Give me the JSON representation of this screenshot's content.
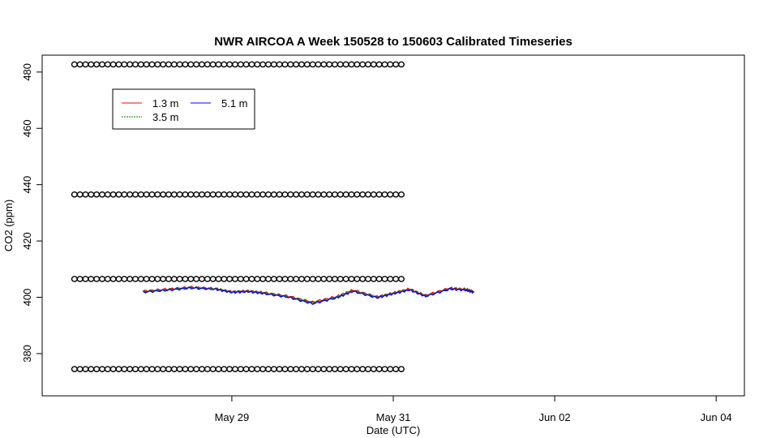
{
  "chart_data": {
    "type": "line",
    "title": "NWR AIRCOA A  Week 150528 to 150603  Calibrated Timeseries",
    "xlabel": "Date (UTC)",
    "ylabel": "CO2 (ppm)",
    "xlim_days": [
      -1.35,
      7.35
    ],
    "ylim": [
      365,
      486
    ],
    "x_ticks": [
      {
        "day": 1,
        "label": "May 29"
      },
      {
        "day": 3,
        "label": "May 31"
      },
      {
        "day": 5,
        "label": "Jun 02"
      },
      {
        "day": 7,
        "label": "Jun 04"
      }
    ],
    "y_ticks": [
      380,
      400,
      420,
      440,
      460,
      480
    ],
    "x_day_zero": "May 28",
    "grid": false,
    "legend": {
      "position": "top-left",
      "entries": [
        {
          "label": "1.3 m",
          "color": "#ff0000"
        },
        {
          "label": "5.1 m",
          "color": "#0000ff"
        },
        {
          "label": "3.5 m",
          "color": "#008000"
        }
      ]
    },
    "series": [
      {
        "name": "1.3 m",
        "color": "#ff0000",
        "x": [
          -0.1,
          0.2,
          0.5,
          0.8,
          1.0,
          1.2,
          1.4,
          1.7,
          2.0,
          2.3,
          2.5,
          2.8,
          3.0,
          3.2,
          3.4,
          3.7,
          3.9,
          4.0
        ],
        "y": [
          402.2,
          402.9,
          403.6,
          403.1,
          402.0,
          402.3,
          401.7,
          400.4,
          398.3,
          400.3,
          402.6,
          400.2,
          401.6,
          403.0,
          400.7,
          403.3,
          402.9,
          402.1
        ]
      },
      {
        "name": "3.5 m",
        "color": "#008000",
        "x": [
          -0.1,
          0.2,
          0.5,
          0.8,
          1.0,
          1.2,
          1.4,
          1.7,
          2.0,
          2.3,
          2.5,
          2.8,
          3.0,
          3.2,
          3.4,
          3.7,
          3.9,
          4.0
        ],
        "y": [
          402.0,
          402.7,
          403.5,
          403.0,
          401.9,
          402.2,
          401.5,
          400.2,
          398.0,
          400.0,
          402.3,
          400.0,
          401.4,
          402.8,
          400.5,
          403.1,
          402.7,
          401.9
        ]
      },
      {
        "name": "5.1 m",
        "color": "#0000ff",
        "x": [
          -0.1,
          0.2,
          0.5,
          0.8,
          1.0,
          1.2,
          1.4,
          1.7,
          2.0,
          2.3,
          2.5,
          2.8,
          3.0,
          3.2,
          3.4,
          3.7,
          3.9,
          4.0
        ],
        "y": [
          401.8,
          402.5,
          403.3,
          402.8,
          401.7,
          402.0,
          401.3,
          400.0,
          397.7,
          399.8,
          402.1,
          399.8,
          401.2,
          402.6,
          400.3,
          402.9,
          402.5,
          401.7
        ]
      }
    ],
    "calibration_points": {
      "marker": "o",
      "levels": [
        374.5,
        406.5,
        436.5,
        482.7
      ],
      "x_start": -0.95,
      "x_end": 3.1,
      "count_per_level": 60
    }
  }
}
